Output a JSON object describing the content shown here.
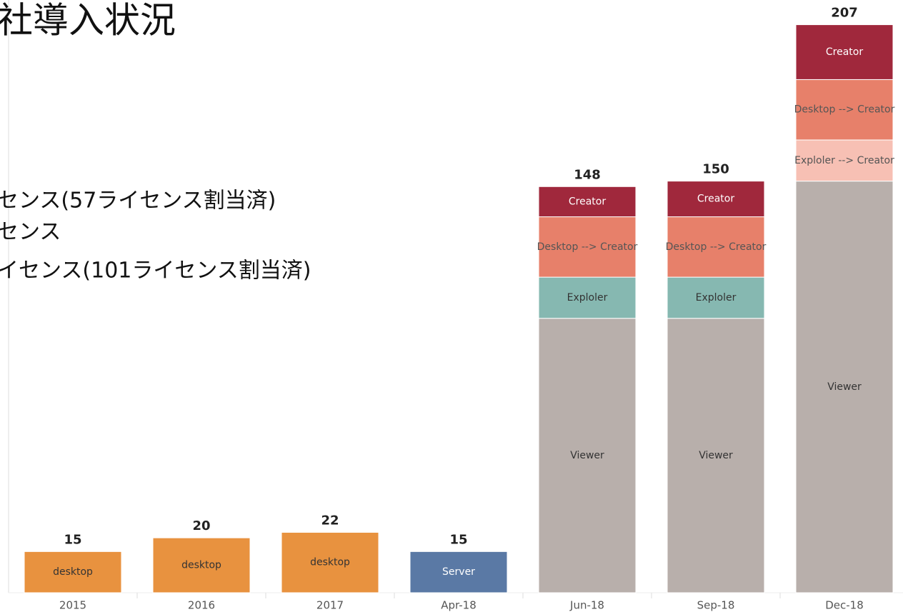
{
  "chart_data": {
    "type": "stacked_bar",
    "title": "社導入状況",
    "annotations": [
      "センス(57ライセンス割当済)",
      "センス",
      "イセンス(101ライセンス割当済)"
    ],
    "categories": [
      "2015",
      "2016",
      "2017",
      "Apr-18",
      "Jun-18",
      "Sep-18",
      "Dec-18"
    ],
    "series": [
      {
        "name": "desktop",
        "color": "#e8923f",
        "label_color": "#333333",
        "values": [
          15,
          20,
          22,
          null,
          null,
          null,
          null
        ]
      },
      {
        "name": "Server",
        "color": "#5a79a5",
        "label_color": "#ffffff",
        "values": [
          null,
          null,
          null,
          15,
          null,
          null,
          null
        ]
      },
      {
        "name": "Viewer",
        "color": "#b8afab",
        "label_color": "#333333",
        "values": [
          null,
          null,
          null,
          null,
          100,
          100,
          150
        ]
      },
      {
        "name": "Exploler --> Creator",
        "color": "#f7c0b4",
        "label_color": "#555555",
        "values": [
          null,
          null,
          null,
          null,
          null,
          null,
          15
        ]
      },
      {
        "name": "Exploler",
        "color": "#86b8b1",
        "label_color": "#333333",
        "values": [
          null,
          null,
          null,
          null,
          15,
          15,
          null
        ]
      },
      {
        "name": "Desktop --> Creator",
        "color": "#e7806a",
        "label_color": "#555555",
        "values": [
          null,
          null,
          null,
          null,
          22,
          22,
          22
        ]
      },
      {
        "name": "Creator",
        "color": "#a0283c",
        "label_color": "#ffffff",
        "values": [
          null,
          null,
          null,
          null,
          11,
          13,
          20
        ]
      }
    ],
    "totals": [
      15,
      20,
      22,
      15,
      148,
      150,
      207
    ],
    "ylim": [
      0,
      216
    ]
  }
}
